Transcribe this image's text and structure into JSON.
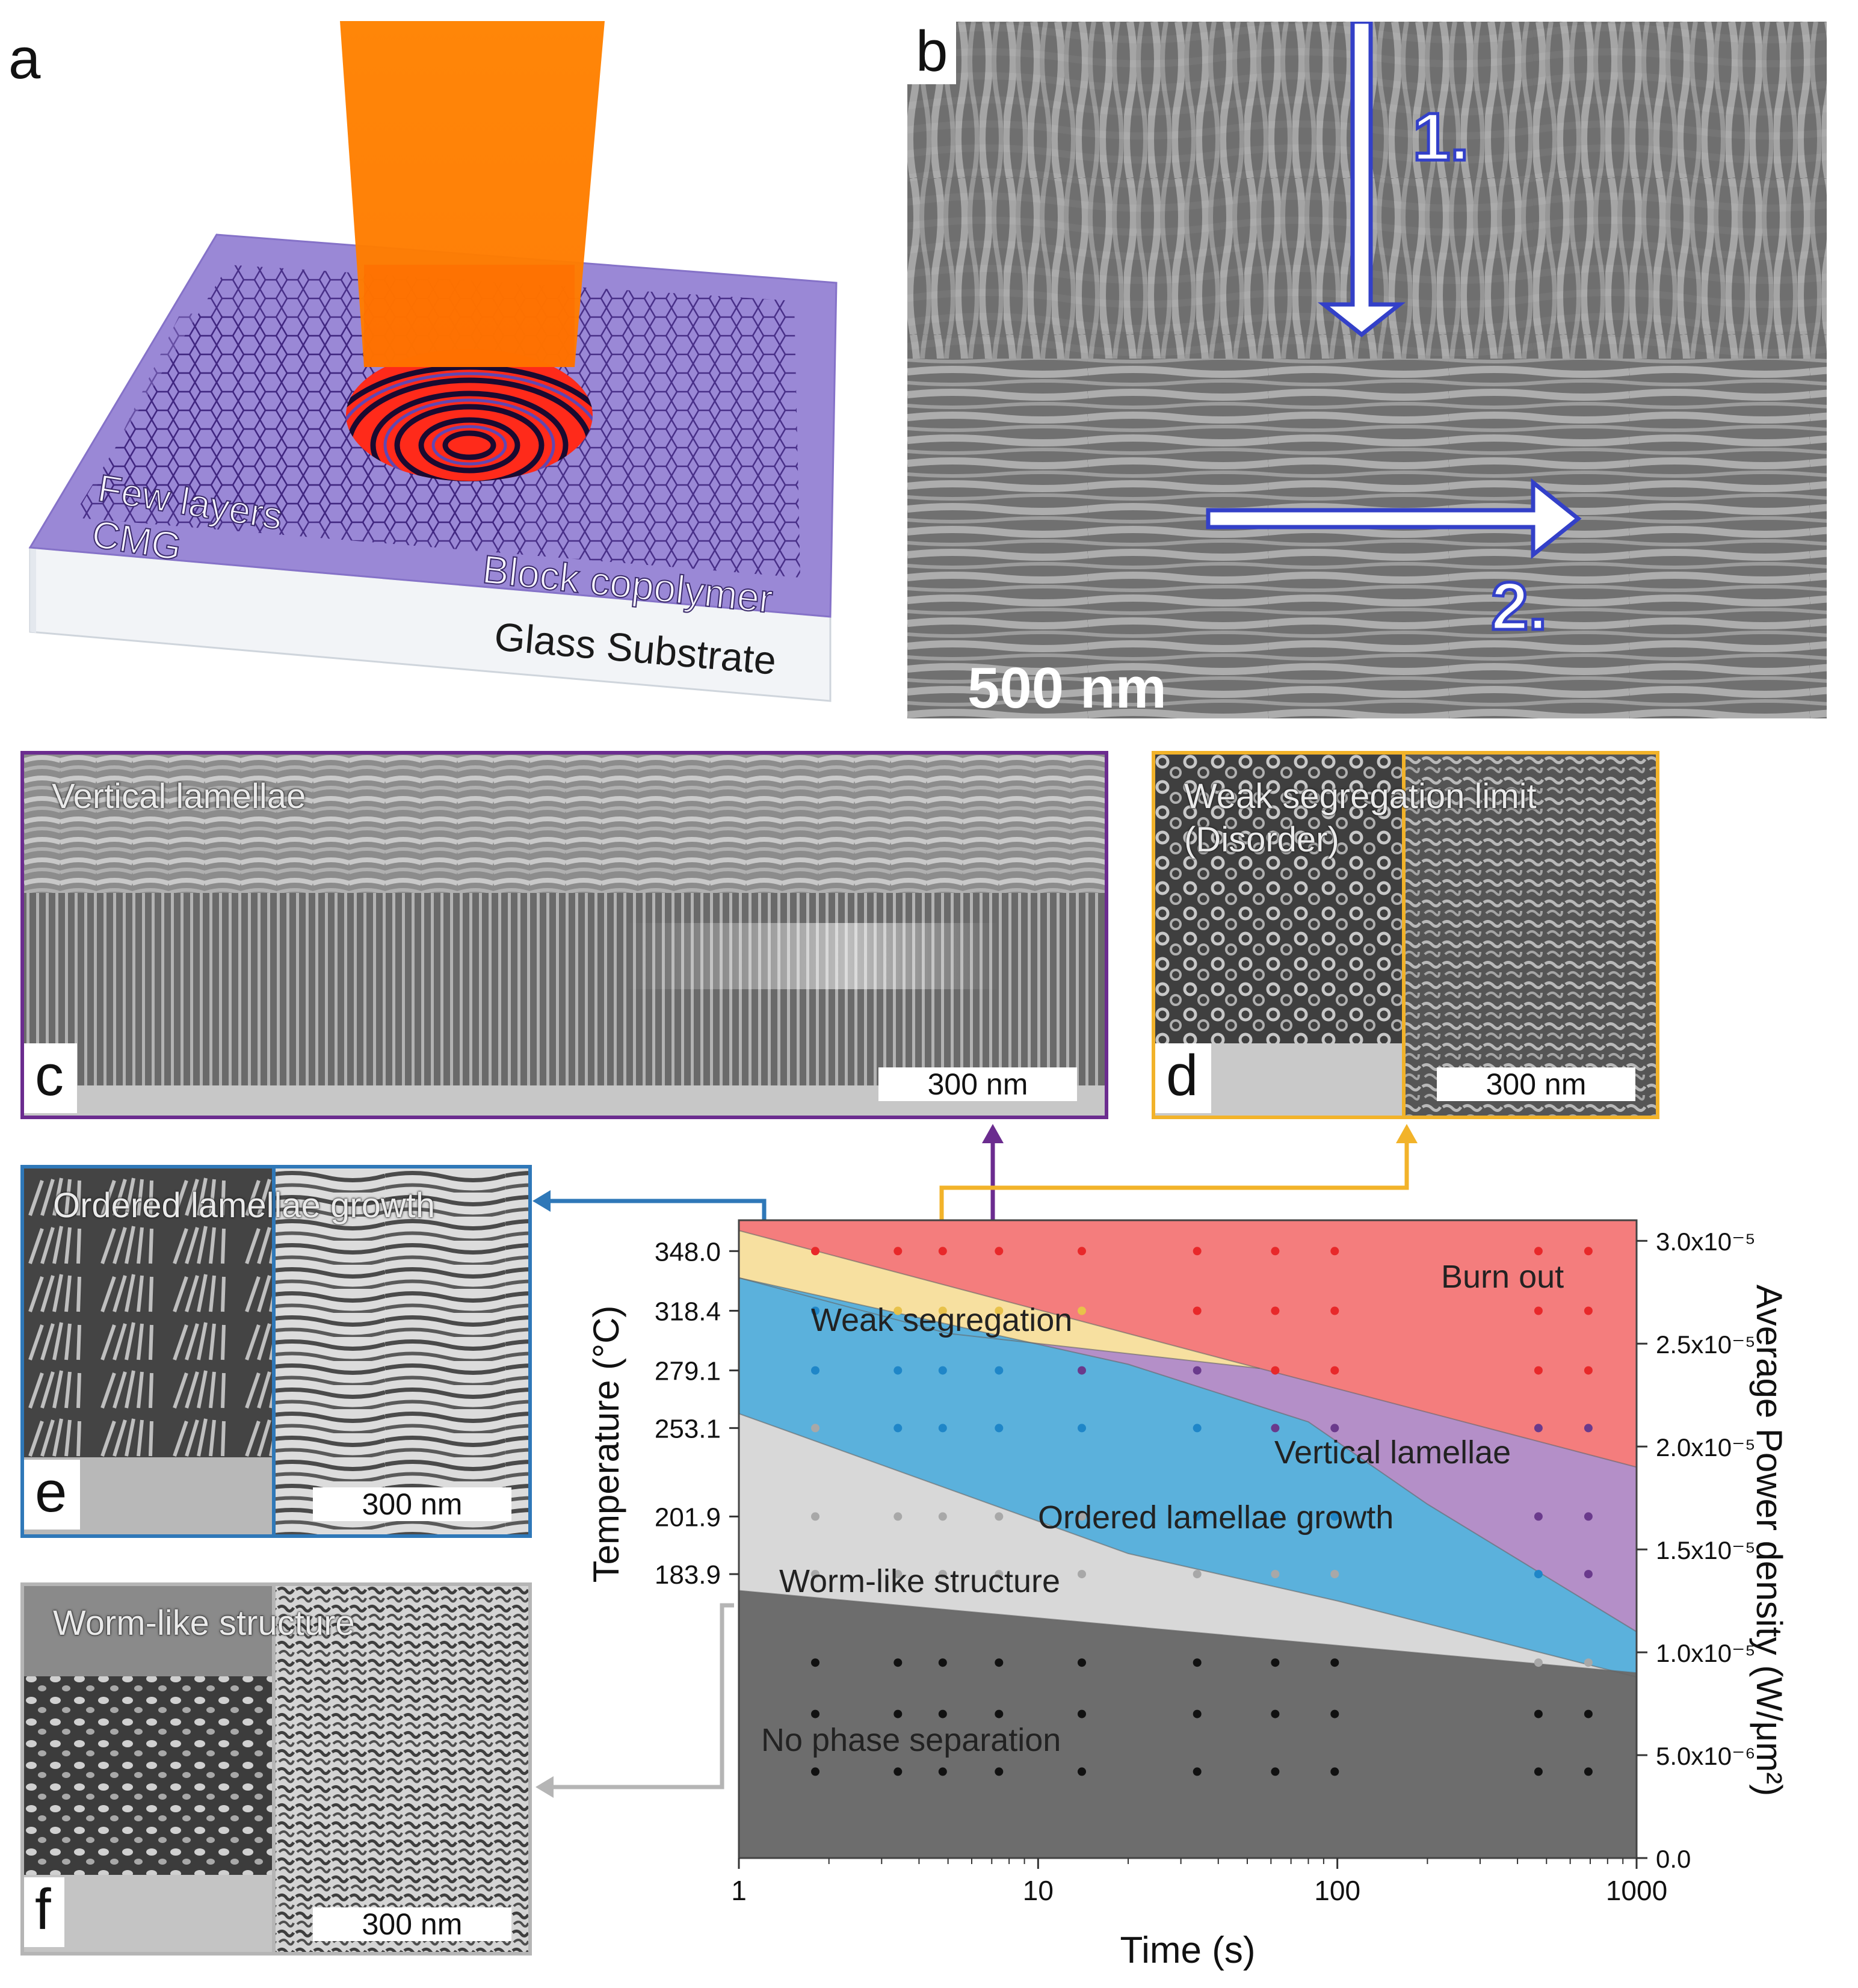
{
  "panel_a": {
    "letter": "a",
    "label_cmg_line1": "Few layers",
    "label_cmg_line2": "CMG",
    "label_bcp": "Block copolymer",
    "label_substrate": "Glass Substrate"
  },
  "panel_b": {
    "letter": "b",
    "arrow1_label": "1.",
    "arrow2_label": "2.",
    "scalebar": "500 nm"
  },
  "panel_c": {
    "letter": "c",
    "title": "Vertical lamellae",
    "scalebar": "300 nm",
    "frame_color": "#6b2c8f"
  },
  "panel_d": {
    "letter": "d",
    "title_line1": "Weak segregation limit",
    "title_line2": "(Disorder)",
    "scalebar": "300 nm",
    "frame_color": "#f2b32a"
  },
  "panel_e": {
    "letter": "e",
    "title": "Ordered lamellae growth",
    "scalebar": "300 nm",
    "frame_color": "#2f78b8"
  },
  "panel_f": {
    "letter": "f",
    "title": "Worm-like structure",
    "scalebar": "300 nm",
    "frame_color": "#b5b5b5"
  },
  "chart_data": {
    "type": "area",
    "xlabel": "Time (s)",
    "ylabel": "Temperature (°C)",
    "y2label": "Average Power density (W/μm²)",
    "x_scale": "log",
    "xlim": [
      1,
      1000
    ],
    "x_ticks": [
      "1",
      "10",
      "100",
      "1000"
    ],
    "y_ticks_left": [
      "348.0",
      "318.4",
      "279.1",
      "253.1",
      "201.9",
      "183.9"
    ],
    "y_ticks_right": [
      "3.0x10⁻⁵",
      "2.5x10⁻⁵",
      "2.0x10⁻⁵",
      "1.5x10⁻⁵",
      "1.0x10⁻⁵",
      "5.0x10⁻⁶",
      "0.0"
    ],
    "ylim_right": [
      0.0,
      3.1e-05
    ],
    "right_tick_values": [
      3e-05,
      2.5e-05,
      2e-05,
      1.5e-05,
      1e-05,
      5e-06,
      0.0
    ],
    "left_tick_power": [
      2.95e-05,
      2.66e-05,
      2.37e-05,
      2.09e-05,
      1.66e-05,
      1.38e-05
    ],
    "regions": [
      {
        "name": "Burn out",
        "color": "#f47d7d"
      },
      {
        "name": "Weak segregation",
        "color": "#f7e0a0"
      },
      {
        "name": "Vertical lamellae",
        "color": "#b48fc8"
      },
      {
        "name": "Ordered lamellae growth",
        "color": "#5bb1dc"
      },
      {
        "name": "Worm-like structure",
        "color": "#d8d8d8"
      },
      {
        "name": "No phase separation",
        "color": "#6d6d6d"
      }
    ],
    "boundaries_power": {
      "x": [
        1,
        1000
      ],
      "burn_lower": [
        [
          1,
          3.05e-05
        ],
        [
          55,
          2.38e-05
        ],
        [
          1000,
          1.9e-05
        ]
      ],
      "weak_lower": [
        [
          1,
          2.82e-05
        ],
        [
          5,
          2.55e-05
        ],
        [
          55,
          2.38e-05
        ]
      ],
      "vertical_lower": [
        [
          1,
          2.82e-05
        ],
        [
          20,
          2.4e-05
        ],
        [
          80,
          2.12e-05
        ],
        [
          200,
          1.72e-05
        ],
        [
          1000,
          1.1e-05
        ]
      ],
      "ordered_lower": [
        [
          1,
          2.16e-05
        ],
        [
          20,
          1.48e-05
        ],
        [
          100,
          1.25e-05
        ],
        [
          1000,
          8.8e-06
        ]
      ],
      "worm_lower": [
        [
          1,
          1.3e-05
        ],
        [
          1000,
          9e-06
        ]
      ]
    },
    "points": {
      "x": [
        1.8,
        3.4,
        4.8,
        7.4,
        14,
        34,
        62,
        98,
        470,
        690
      ],
      "rows": [
        {
          "power": 2.95e-05,
          "colors": [
            "red",
            "red",
            "red",
            "red",
            "red",
            "red",
            "red",
            "red",
            "red",
            "red"
          ]
        },
        {
          "power": 2.66e-05,
          "colors": [
            "blue",
            "yellow",
            "yellow",
            "yellow",
            "yellow",
            "red",
            "red",
            "red",
            "red",
            "red"
          ]
        },
        {
          "power": 2.37e-05,
          "colors": [
            "blue",
            "blue",
            "blue",
            "blue",
            "purple",
            "purple",
            "red",
            "red",
            "red",
            "red"
          ]
        },
        {
          "power": 2.09e-05,
          "colors": [
            "gray",
            "blue",
            "blue",
            "blue",
            "blue",
            "blue",
            "purple",
            "purple",
            "purple",
            "purple"
          ]
        },
        {
          "power": 1.66e-05,
          "colors": [
            "gray",
            "gray",
            "gray",
            "gray",
            "gray",
            "blue",
            "blue",
            "blue",
            "purple",
            "purple"
          ]
        },
        {
          "power": 1.38e-05,
          "colors": [
            "gray",
            "gray",
            "gray",
            "gray",
            "gray",
            "gray",
            "gray",
            "gray",
            "blue",
            "purple"
          ]
        },
        {
          "power": 9.5e-06,
          "colors": [
            "black",
            "black",
            "black",
            "black",
            "black",
            "black",
            "black",
            "black",
            "gray",
            "gray"
          ]
        },
        {
          "power": 7e-06,
          "colors": [
            "black",
            "black",
            "black",
            "black",
            "black",
            "black",
            "black",
            "black",
            "black",
            "black"
          ]
        },
        {
          "power": 4.2e-06,
          "colors": [
            "black",
            "black",
            "black",
            "black",
            "black",
            "black",
            "black",
            "black",
            "black",
            "black"
          ]
        }
      ]
    },
    "dot_colors": {
      "red": "#e8282a",
      "yellow": "#e8c24a",
      "blue": "#1f86c8",
      "purple": "#6a3a8c",
      "gray": "#a8a8a8",
      "black": "#111111"
    }
  }
}
